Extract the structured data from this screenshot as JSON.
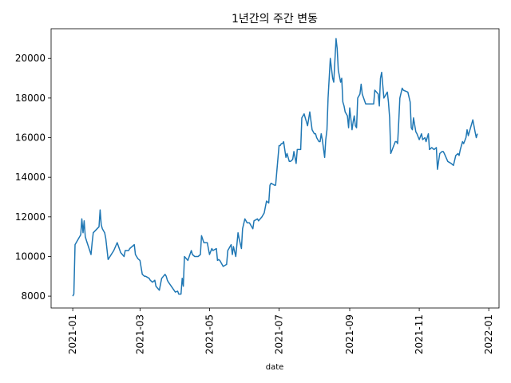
{
  "chart_data": {
    "type": "line",
    "title": "1년간의 주간 변동",
    "xlabel": "date",
    "ylabel": "",
    "grid": false,
    "legend": "none",
    "line_color": "#1f77b4",
    "xlim": [
      "2020-12-13",
      "2022-01-10"
    ],
    "ylim": [
      7400,
      21500
    ],
    "x_ticks": [
      "2021-01-01",
      "2021-03-01",
      "2021-05-01",
      "2021-07-01",
      "2021-09-01",
      "2021-11-01",
      "2022-01-01"
    ],
    "x_tick_labels": [
      "2021-01",
      "2021-03",
      "2021-05",
      "2021-07",
      "2021-09",
      "2021-11",
      "2022-01"
    ],
    "y_ticks": [
      8000,
      10000,
      12000,
      14000,
      16000,
      18000,
      20000
    ],
    "y_tick_labels": [
      "8000",
      "10000",
      "12000",
      "14000",
      "16000",
      "18000",
      "20000"
    ],
    "series": [
      {
        "x": [
          "2021-01-01",
          "2021-01-02",
          "2021-01-03",
          "2021-01-08",
          "2021-01-09",
          "2021-01-10",
          "2021-01-11",
          "2021-01-12",
          "2021-01-13",
          "2021-01-17",
          "2021-01-18",
          "2021-01-19",
          "2021-01-24",
          "2021-01-25",
          "2021-01-26",
          "2021-01-27",
          "2021-01-29",
          "2021-01-30",
          "2021-02-01",
          "2021-02-06",
          "2021-02-09",
          "2021-02-12",
          "2021-02-15",
          "2021-02-16",
          "2021-02-19",
          "2021-02-20",
          "2021-02-24",
          "2021-02-25",
          "2021-02-26",
          "2021-02-27",
          "2021-03-01",
          "2021-03-03",
          "2021-03-05",
          "2021-03-06",
          "2021-03-09",
          "2021-03-10",
          "2021-03-12",
          "2021-03-14",
          "2021-03-15",
          "2021-03-18",
          "2021-03-19",
          "2021-03-20",
          "2021-03-23",
          "2021-03-24",
          "2021-03-25",
          "2021-03-26",
          "2021-04-01",
          "2021-04-03",
          "2021-04-04",
          "2021-04-06",
          "2021-04-07",
          "2021-04-08",
          "2021-04-09",
          "2021-04-12",
          "2021-04-15",
          "2021-04-16",
          "2021-04-18",
          "2021-04-19",
          "2021-04-21",
          "2021-04-23",
          "2021-04-24",
          "2021-04-26",
          "2021-04-29",
          "2021-05-01",
          "2021-05-03",
          "2021-05-04",
          "2021-05-07",
          "2021-05-08",
          "2021-05-09",
          "2021-05-10",
          "2021-05-11",
          "2021-05-13",
          "2021-05-16",
          "2021-05-17",
          "2021-05-20",
          "2021-05-21",
          "2021-05-22",
          "2021-05-24",
          "2021-05-26",
          "2021-05-27",
          "2021-05-29",
          "2021-05-30",
          "2021-06-01",
          "2021-06-03",
          "2021-06-04",
          "2021-06-05",
          "2021-06-08",
          "2021-06-09",
          "2021-06-12",
          "2021-06-13",
          "2021-06-16",
          "2021-06-17",
          "2021-06-18",
          "2021-06-20",
          "2021-06-22",
          "2021-06-23",
          "2021-06-24",
          "2021-06-27",
          "2021-06-28",
          "2021-07-01",
          "2021-07-02",
          "2021-07-03",
          "2021-07-04",
          "2021-07-05",
          "2021-07-07",
          "2021-07-08",
          "2021-07-10",
          "2021-07-11",
          "2021-07-13",
          "2021-07-14",
          "2021-07-16",
          "2021-07-17",
          "2021-07-20",
          "2021-07-21",
          "2021-07-23",
          "2021-07-24",
          "2021-07-25",
          "2021-07-26",
          "2021-07-28",
          "2021-07-30",
          "2021-08-01",
          "2021-08-02",
          "2021-08-03",
          "2021-08-04",
          "2021-08-05",
          "2021-08-06",
          "2021-08-07",
          "2021-08-08",
          "2021-08-10",
          "2021-08-11",
          "2021-08-12",
          "2021-08-13",
          "2021-08-15",
          "2021-08-17",
          "2021-08-18",
          "2021-08-20",
          "2021-08-21",
          "2021-08-22",
          "2021-08-24",
          "2021-08-25",
          "2021-08-26",
          "2021-08-27",
          "2021-08-28",
          "2021-08-30",
          "2021-08-31",
          "2021-09-01",
          "2021-09-03",
          "2021-09-04",
          "2021-09-05",
          "2021-09-06",
          "2021-09-07",
          "2021-09-08",
          "2021-09-10",
          "2021-09-11",
          "2021-09-12",
          "2021-09-15",
          "2021-09-22",
          "2021-09-23",
          "2021-09-26",
          "2021-09-27",
          "2021-09-28",
          "2021-09-29",
          "2021-10-01",
          "2021-10-04",
          "2021-10-05",
          "2021-10-06",
          "2021-10-07",
          "2021-10-11",
          "2021-10-12",
          "2021-10-13",
          "2021-10-14",
          "2021-10-15",
          "2021-10-17",
          "2021-10-18",
          "2021-10-22",
          "2021-10-24",
          "2021-10-25",
          "2021-10-26",
          "2021-10-27",
          "2021-10-29",
          "2021-10-30",
          "2021-11-01",
          "2021-11-03",
          "2021-11-04",
          "2021-11-06",
          "2021-11-07",
          "2021-11-09",
          "2021-11-10",
          "2021-11-12",
          "2021-11-14",
          "2021-11-16",
          "2021-11-17",
          "2021-11-18",
          "2021-11-19",
          "2021-11-21",
          "2021-11-22",
          "2021-11-23",
          "2021-11-26",
          "2021-11-29",
          "2021-12-01",
          "2021-12-03",
          "2021-12-05",
          "2021-12-06",
          "2021-12-07",
          "2021-12-09",
          "2021-12-10",
          "2021-12-12",
          "2021-12-13",
          "2021-12-14",
          "2021-12-18",
          "2021-12-20",
          "2021-12-21",
          "2021-12-22"
        ],
        "values": [
          8000,
          8100,
          10600,
          11100,
          11900,
          11200,
          11800,
          11000,
          10800,
          10100,
          10700,
          11200,
          11500,
          12350,
          11600,
          11400,
          11200,
          10900,
          9850,
          10300,
          10700,
          10200,
          10000,
          10300,
          10300,
          10400,
          10600,
          10100,
          10000,
          9900,
          9800,
          9100,
          9000,
          9000,
          8900,
          8800,
          8700,
          8800,
          8500,
          8300,
          8600,
          8900,
          9100,
          9000,
          8800,
          8700,
          8200,
          8250,
          8100,
          8100,
          8900,
          8500,
          10000,
          9800,
          10300,
          10100,
          10000,
          10000,
          10000,
          10100,
          11050,
          10700,
          10700,
          10100,
          10400,
          10300,
          10400,
          9800,
          9850,
          9800,
          9700,
          9500,
          9600,
          10300,
          10600,
          10100,
          10500,
          10000,
          11200,
          10900,
          10400,
          11400,
          11900,
          11700,
          11700,
          11700,
          11400,
          11800,
          11900,
          11800,
          12000,
          12100,
          12200,
          12800,
          12700,
          13600,
          13700,
          13600,
          13600,
          15600,
          15600,
          15700,
          15700,
          15800,
          15000,
          15200,
          14800,
          14800,
          14900,
          15300,
          14700,
          15400,
          15400,
          17000,
          17200,
          17000,
          16800,
          16600,
          17300,
          16400,
          16200,
          16200,
          16000,
          15900,
          15800,
          15800,
          16200,
          15900,
          15000,
          15900,
          16400,
          18000,
          20000,
          19000,
          18800,
          21000,
          20500,
          19400,
          18800,
          19000,
          17800,
          17600,
          17300,
          17100,
          16500,
          17500,
          16400,
          16800,
          17100,
          16600,
          16500,
          18000,
          18200,
          18700,
          18200,
          17700,
          17700,
          18400,
          18200,
          17600,
          19000,
          19300,
          18000,
          18300,
          17800,
          17000,
          15200,
          15800,
          15800,
          15700,
          16800,
          18000,
          18500,
          18400,
          18300,
          17800,
          16500,
          16400,
          17000,
          16300,
          16200,
          15900,
          16200,
          15900,
          16000,
          15800,
          16200,
          15400,
          15500,
          15400,
          15500,
          14400,
          14800,
          15200,
          15300,
          15300,
          15200,
          14800,
          14700,
          14600,
          15100,
          15200,
          15100,
          15400,
          15800,
          15700,
          16000,
          16400,
          16100,
          16900,
          16300,
          16000,
          16200
        ]
      }
    ]
  }
}
